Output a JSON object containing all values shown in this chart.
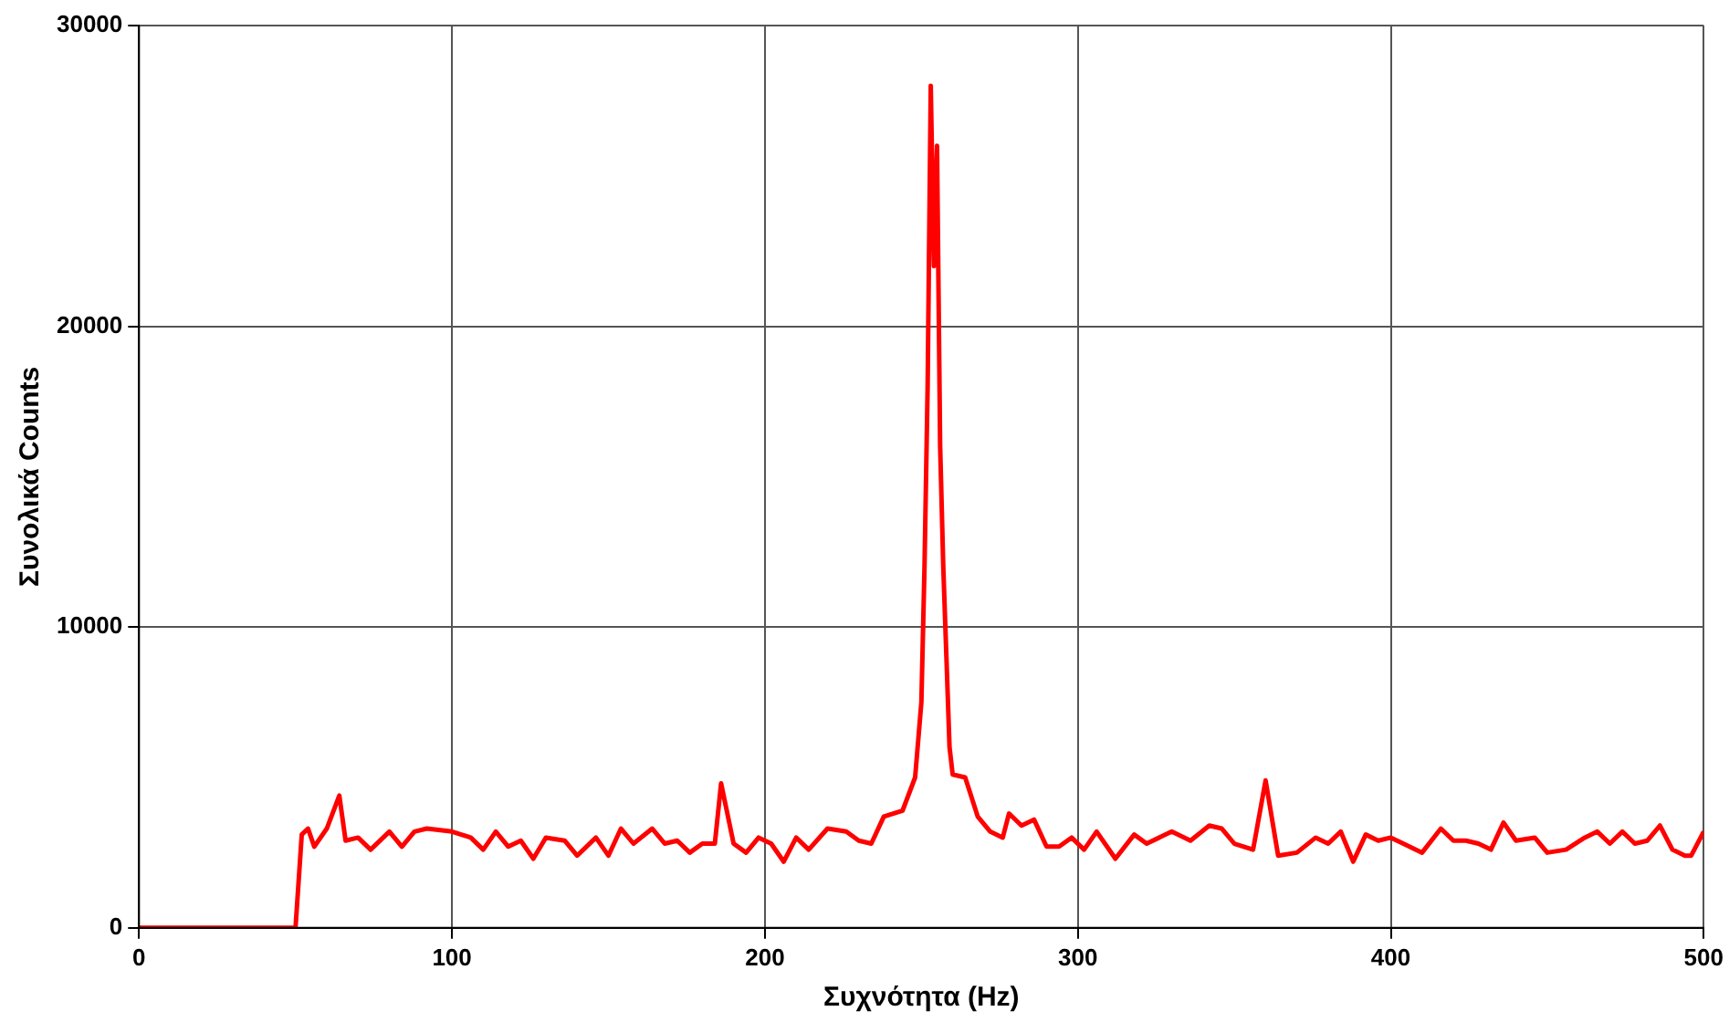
{
  "chart_data": {
    "type": "line",
    "xlabel": "Συχνότητα (Hz)",
    "ylabel": "Συνολικά Counts",
    "xlim": [
      0,
      500
    ],
    "xticks": [
      0,
      100,
      200,
      300,
      400,
      500
    ],
    "ylim": [
      0,
      30000
    ],
    "yticks": [
      0,
      10000,
      20000,
      30000
    ],
    "grid": true,
    "legend": false,
    "marker": "none",
    "line_style": "solid",
    "series": [
      {
        "color": "#ff0000",
        "x": [
          0,
          50,
          52,
          54,
          56,
          60,
          64,
          66,
          70,
          74,
          80,
          84,
          88,
          92,
          100,
          106,
          110,
          114,
          118,
          122,
          126,
          130,
          136,
          140,
          146,
          150,
          154,
          158,
          164,
          168,
          172,
          176,
          180,
          184,
          186,
          190,
          194,
          198,
          202,
          206,
          210,
          214,
          220,
          226,
          230,
          234,
          238,
          244,
          248,
          250,
          251,
          252,
          253,
          254,
          255,
          256,
          257,
          258,
          259,
          260,
          264,
          268,
          272,
          276,
          278,
          282,
          286,
          290,
          294,
          298,
          302,
          306,
          312,
          318,
          322,
          330,
          336,
          342,
          346,
          350,
          356,
          360,
          364,
          370,
          376,
          380,
          384,
          388,
          392,
          396,
          400,
          404,
          410,
          416,
          420,
          424,
          428,
          432,
          436,
          440,
          446,
          450,
          456,
          462,
          466,
          470,
          474,
          478,
          482,
          486,
          490,
          494,
          496,
          500
        ],
        "values": [
          0,
          0,
          3100,
          3300,
          2700,
          3300,
          4400,
          2900,
          3000,
          2600,
          3200,
          2700,
          3200,
          3300,
          3200,
          3000,
          2600,
          3200,
          2700,
          2900,
          2300,
          3000,
          2900,
          2400,
          3000,
          2400,
          3300,
          2800,
          3300,
          2800,
          2900,
          2500,
          2800,
          2800,
          4800,
          2800,
          2500,
          3000,
          2800,
          2200,
          3000,
          2600,
          3300,
          3200,
          2900,
          2800,
          3700,
          3900,
          5000,
          7500,
          12000,
          18000,
          28000,
          22000,
          26000,
          16000,
          12000,
          9000,
          6000,
          5100,
          5000,
          3700,
          3200,
          3000,
          3800,
          3400,
          3600,
          2700,
          2700,
          3000,
          2600,
          3200,
          2300,
          3100,
          2800,
          3200,
          2900,
          3400,
          3300,
          2800,
          2600,
          4900,
          2400,
          2500,
          3000,
          2800,
          3200,
          2200,
          3100,
          2900,
          3000,
          2800,
          2500,
          3300,
          2900,
          2900,
          2800,
          2600,
          3500,
          2900,
          3000,
          2500,
          2600,
          3000,
          3200,
          2800,
          3200,
          2800,
          2900,
          3400,
          2600,
          2400,
          2400,
          3200
        ]
      }
    ]
  }
}
